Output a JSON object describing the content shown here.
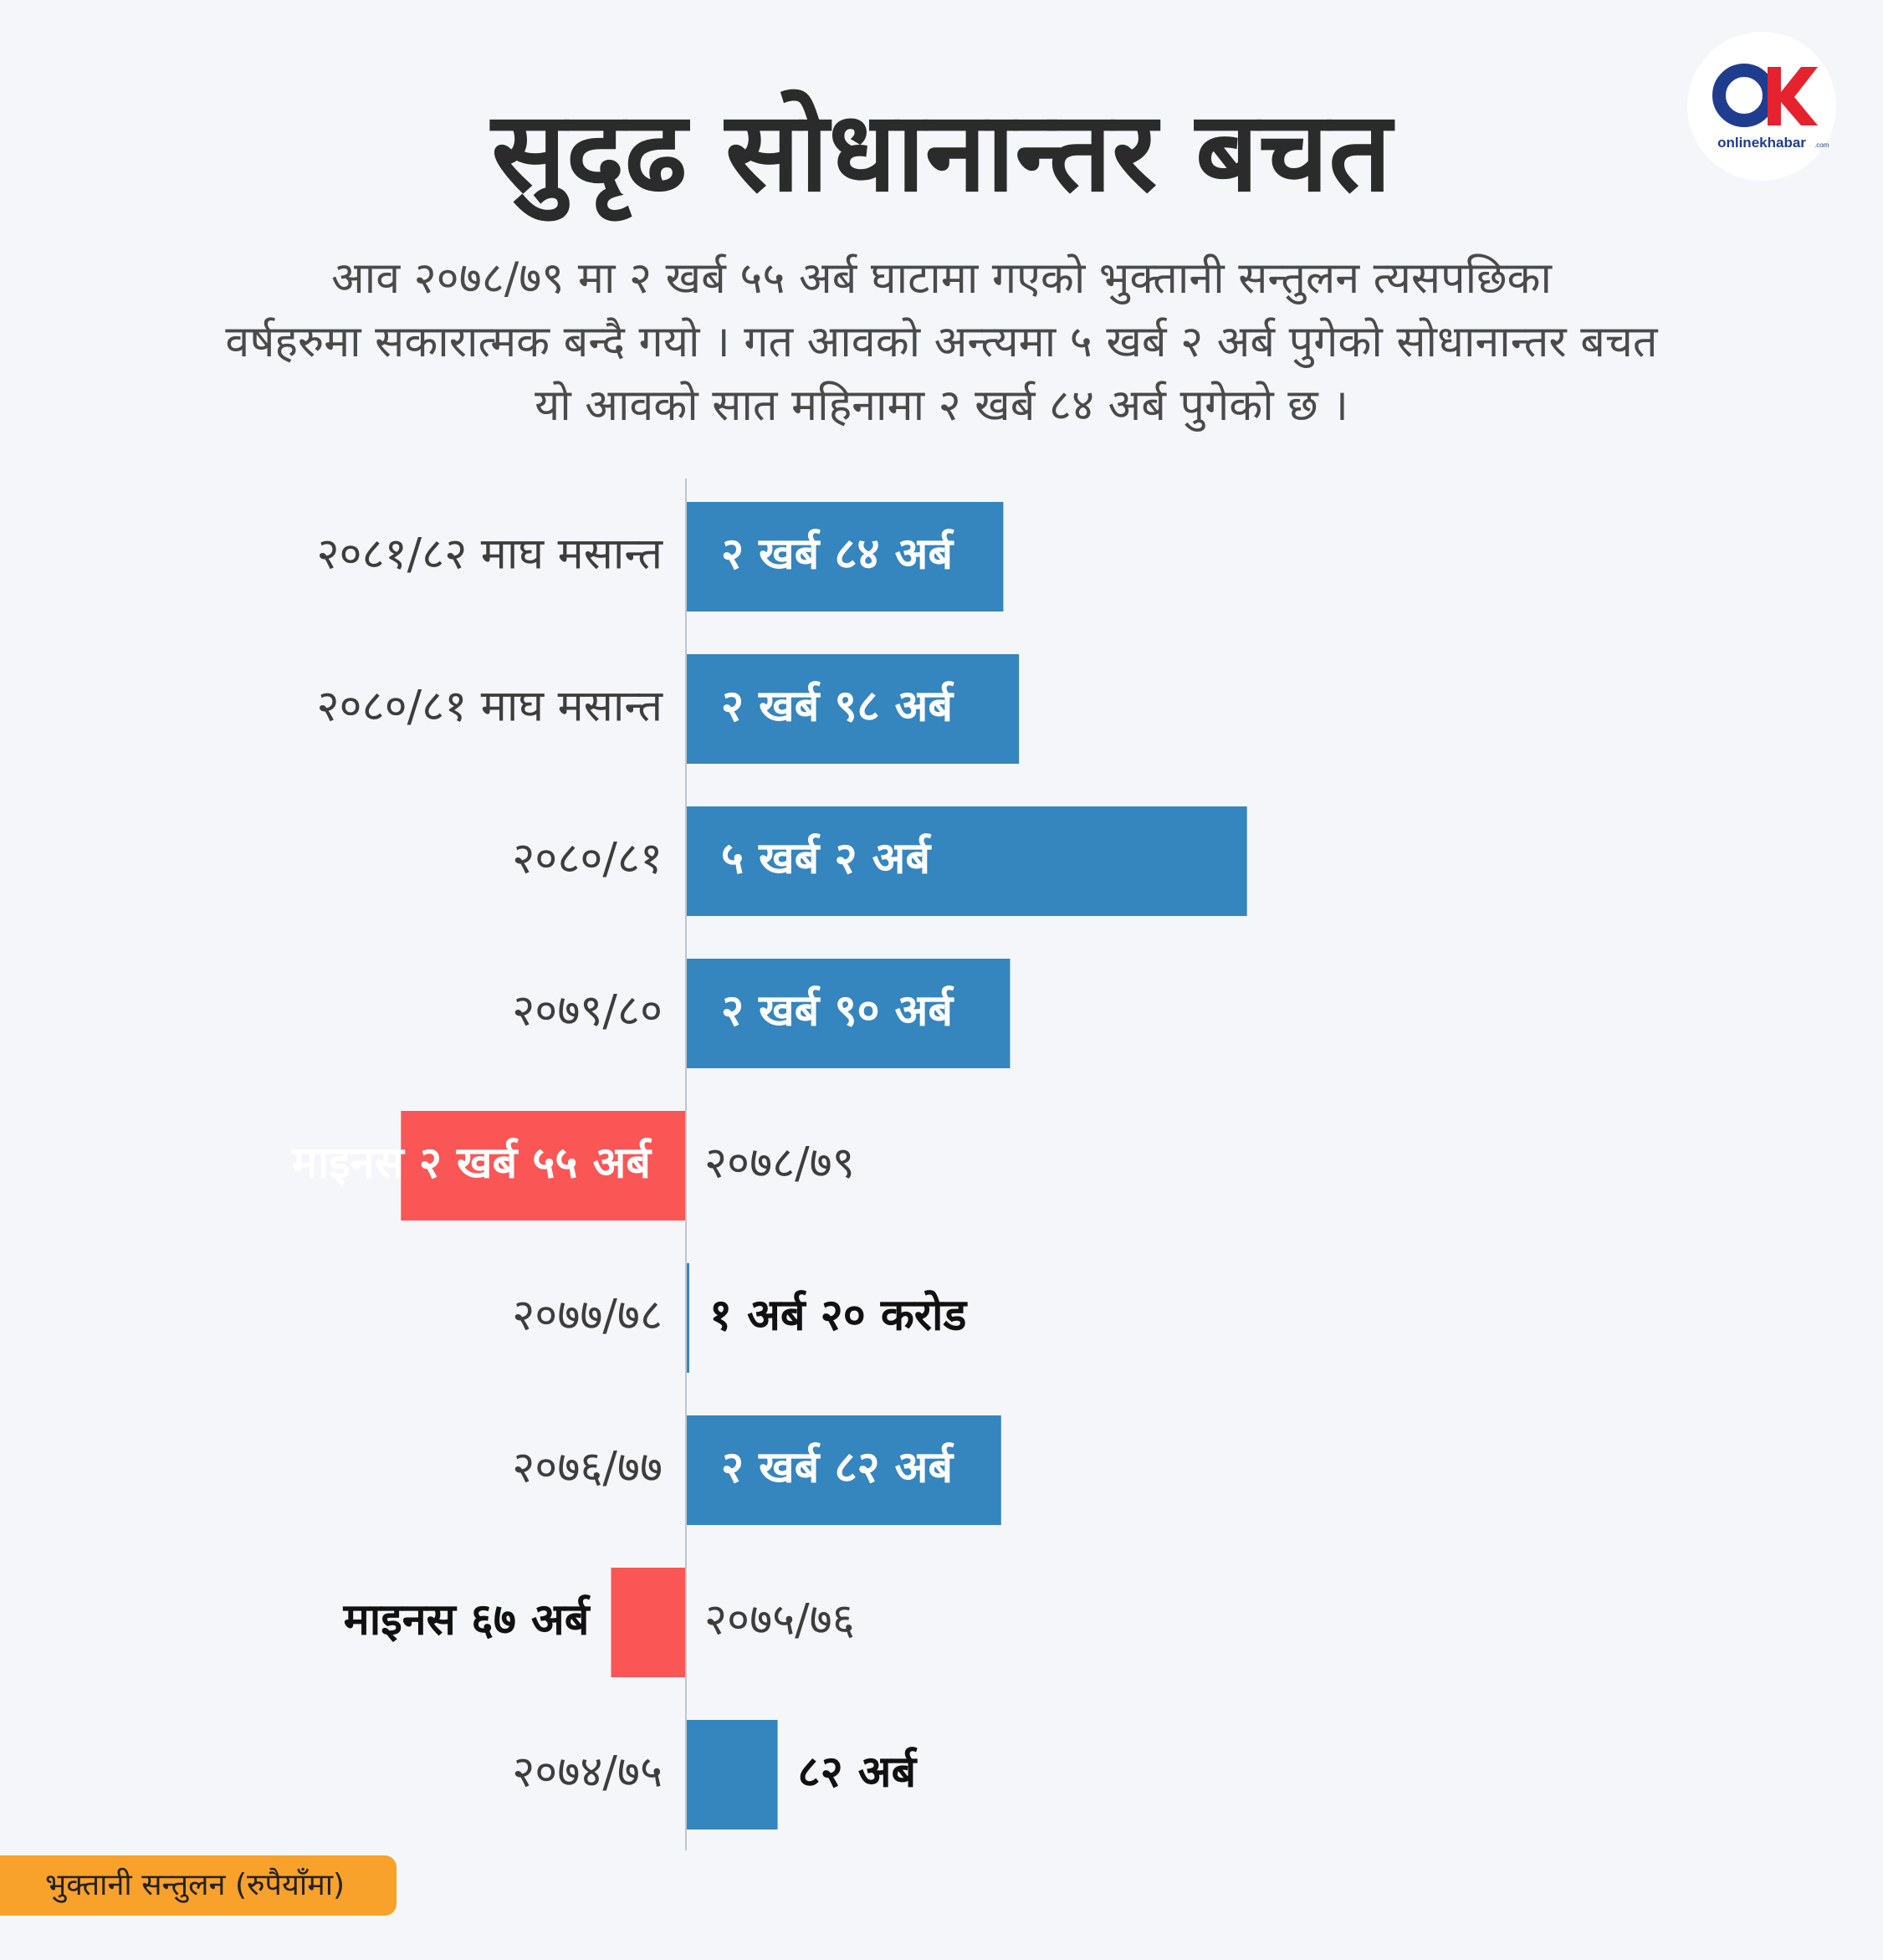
{
  "header": {
    "title": "सुदृढ सोधानान्तर बचत",
    "subtitle_lines": [
      "आव २०७८/७९ मा २ खर्ब ५५ अर्ब घाटामा गएको भुक्तानी सन्तुलन त्यसपछिका",
      "वर्षहरुमा सकारात्मक बन्दै गयो । गत आवको अन्त्यमा ५ खर्ब २ अर्ब पुगेको सोधानान्तर बचत",
      "यो आवको सात महिनामा २ खर्ब ८४ अर्ब पुगेको छ ।"
    ]
  },
  "logo": {
    "brand": "onlinekhabar",
    "suffix": ".com"
  },
  "colors": {
    "positive": "#3585bf",
    "negative": "#fa5656",
    "axis": "#bfc6cf",
    "tag": "#f8a12b"
  },
  "chart_data": {
    "type": "bar",
    "orientation": "horizontal",
    "unit": "अर्ब रुपैयाँ",
    "categories": [
      "२०८१/८२ माघ मसान्त",
      "२०८०/८१ माघ मसान्त",
      "२०८०/८१",
      "२०७९/८०",
      "२०७८/७९",
      "२०७७/७८",
      "२०७६/७७",
      "२०७५/७६",
      "२०७४/७५"
    ],
    "values": [
      284,
      298,
      502,
      290,
      -255,
      1.2,
      282,
      -67,
      82
    ],
    "value_labels": [
      "२ खर्ब ८४ अर्ब",
      "२ खर्ब ९८ अर्ब",
      "५ खर्ब २ अर्ब",
      "२ खर्ब ९० अर्ब",
      "माइनस २ खर्ब ५५ अर्ब",
      "१ अर्ब २० करोड",
      "२ खर्ब ८२ अर्ब",
      "माइनस ६७ अर्ब",
      "८२ अर्ब"
    ],
    "legend": "भुक्तानी सन्तुलन (रुपैयाँमा)"
  }
}
